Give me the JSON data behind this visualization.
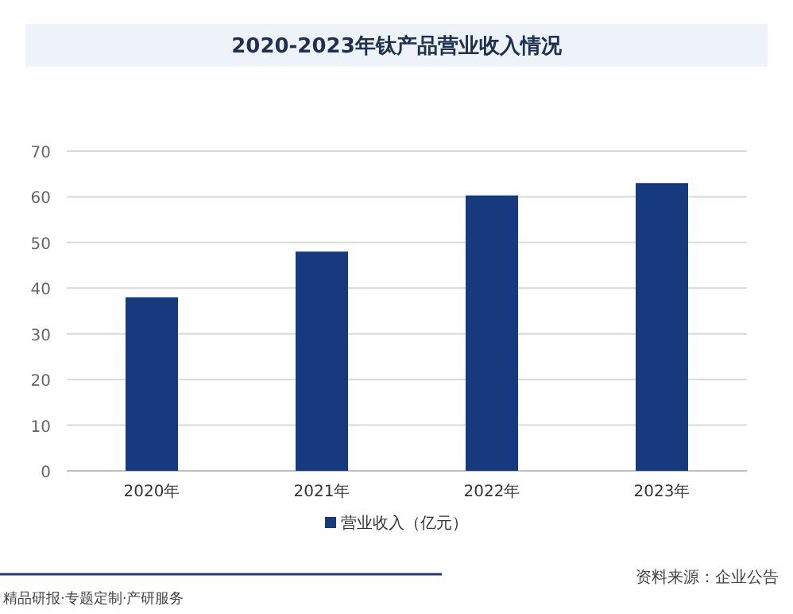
{
  "chart_data": {
    "type": "bar",
    "title": "2020-2023年钛产品营业收入情况",
    "categories": [
      "2020年",
      "2021年",
      "2022年",
      "2023年"
    ],
    "series": [
      {
        "name": "营业收入（亿元）",
        "color": "#173a7e",
        "values": [
          38,
          48,
          60.3,
          63
        ]
      }
    ],
    "ylim": [
      0,
      70
    ],
    "yticks": [
      0,
      10,
      20,
      30,
      40,
      50,
      60,
      70
    ],
    "grid": "y",
    "legend": "bottom",
    "annotations": [
      "资料来源：企业公告",
      "精品研报·专题定制·产研服务"
    ]
  }
}
